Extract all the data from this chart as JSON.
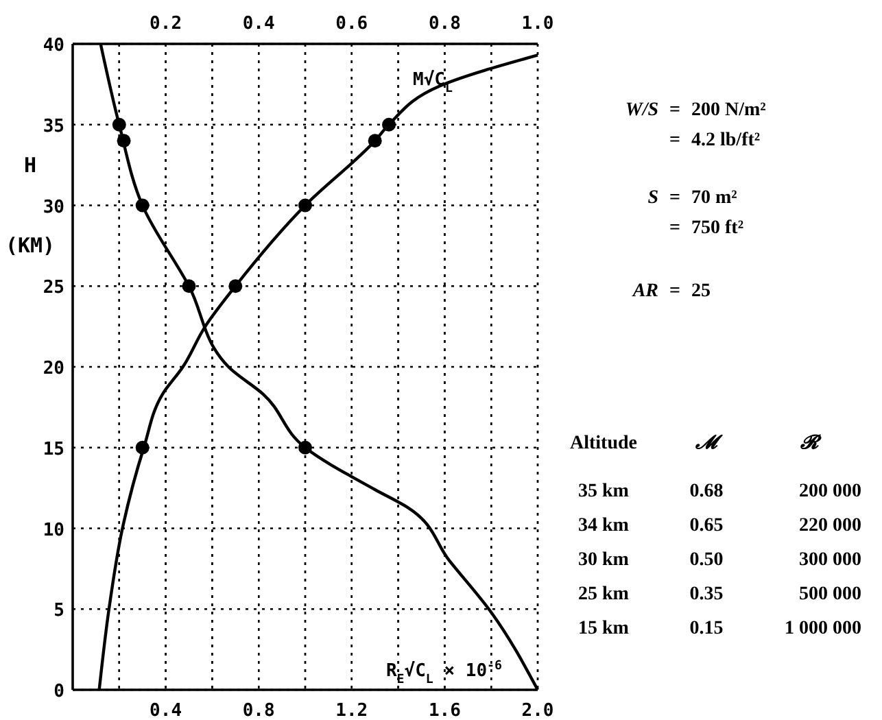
{
  "chart_data": {
    "type": "line",
    "ylabel": "H (KM)",
    "ylim": [
      0,
      40
    ],
    "yticks": [
      0,
      5,
      10,
      15,
      20,
      25,
      30,
      35,
      40
    ],
    "xlim": [
      0,
      2.0
    ],
    "xticks": [
      {
        "value": 0.2,
        "label": null
      },
      0.4,
      {
        "value": 0.6,
        "label": null
      },
      0.8,
      {
        "value": 1.0,
        "label": null
      },
      1.2,
      {
        "value": 1.4,
        "label": null
      },
      1.6,
      {
        "value": 1.8,
        "label": null
      },
      "2.0"
    ],
    "x2lim": [
      0,
      1.0
    ],
    "x2ticks": [
      {
        "value": 0.1,
        "label": null
      },
      0.2,
      {
        "value": 0.3,
        "label": null
      },
      0.4,
      {
        "value": 0.5,
        "label": null
      },
      0.6,
      {
        "value": 0.7,
        "label": null
      },
      0.8,
      {
        "value": 0.9,
        "label": null
      },
      "1.0"
    ],
    "grid": true,
    "tick_labels": "xy",
    "series": [
      {
        "name": "M√C$_{L}$",
        "axis": "x2",
        "color": "#000000",
        "x": [
          0.057,
          0.078,
          0.107,
          0.153,
          0.193,
          0.237,
          0.285,
          0.35,
          0.5,
          0.65,
          0.68,
          0.79,
          1.0
        ],
        "values": [
          0,
          5,
          10,
          15,
          18.3,
          20,
          22.5,
          25,
          30,
          34,
          35,
          37.4,
          39.3
        ]
      },
      {
        "type": "scatter",
        "axis": "x2",
        "color": "#000000",
        "marker": "circle",
        "x": [
          0.68,
          0.65,
          0.5,
          0.35,
          0.15
        ],
        "values": [
          35,
          34,
          30,
          25,
          15
        ]
      },
      {
        "name": "R$_{E}$√C$_{L}$ × 10$^{-6}$",
        "color": "#000000",
        "x": [
          0.12,
          0.2,
          0.3,
          0.5,
          0.67,
          0.82,
          1.0,
          1.3,
          1.44,
          1.62,
          1.8,
          2.0
        ],
        "values": [
          40,
          35,
          30,
          25,
          20,
          18.3,
          15,
          12.4,
          11.3,
          8,
          4.8,
          0
        ]
      },
      {
        "type": "scatter",
        "color": "#000000",
        "marker": "circle",
        "x": [
          0.2,
          0.22,
          0.3,
          0.5,
          1.0
        ],
        "values": [
          35,
          34,
          30,
          25,
          15
        ]
      }
    ],
    "annotations": [
      "W/S = 200 N/m²",
      "= 4.2 lb/ft²",
      "S = 70 m²",
      "= 750 ft²",
      "AR = 25",
      "Altitude",
      "𝓜",
      "𝓡",
      "35 km",
      "0.68",
      "200 000",
      "34 km",
      "0.65",
      "220 000",
      "30 km",
      "0.50",
      "300 000",
      "25 km",
      "0.35",
      "500 000",
      "15 km",
      "0.15",
      "1 000 000"
    ]
  }
}
